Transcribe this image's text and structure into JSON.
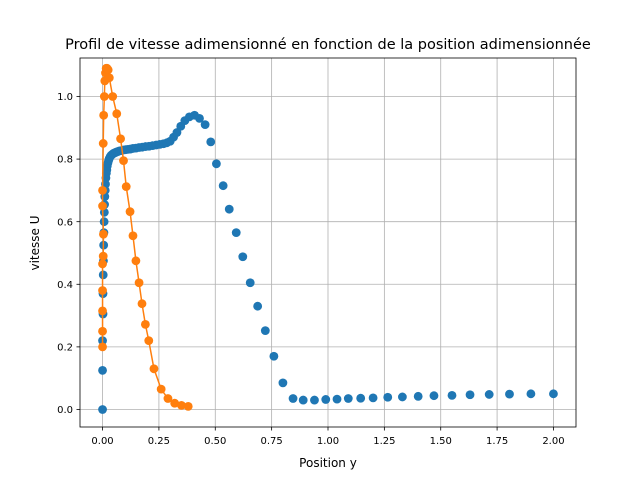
{
  "chart_data": {
    "type": "scatter",
    "title": "Profil de vitesse adimensionné en fonction de la position adimensionnée",
    "xlabel": "Position  y",
    "ylabel": "vitesse U",
    "xlim": [
      -0.1,
      2.1
    ],
    "ylim": [
      -0.056,
      1.123
    ],
    "x_ticks": [
      "0.00",
      "0.25",
      "0.50",
      "0.75",
      "1.00",
      "1.25",
      "1.50",
      "1.75",
      "2.00"
    ],
    "x_tick_values": [
      0,
      0.25,
      0.5,
      0.75,
      1.0,
      1.25,
      1.5,
      1.75,
      2.0
    ],
    "y_ticks": [
      "0.0",
      "0.2",
      "0.4",
      "0.6",
      "0.8",
      "1.0"
    ],
    "y_tick_values": [
      0,
      0.2,
      0.4,
      0.6,
      0.8,
      1.0
    ],
    "grid": true,
    "series": [
      {
        "color": "#1f77b4",
        "style": "markers",
        "points": [
          [
            0.0,
            0.0
          ],
          [
            0.0,
            0.125
          ],
          [
            0.0,
            0.22
          ],
          [
            0.002,
            0.305
          ],
          [
            0.002,
            0.37
          ],
          [
            0.003,
            0.43
          ],
          [
            0.004,
            0.475
          ],
          [
            0.005,
            0.525
          ],
          [
            0.006,
            0.565
          ],
          [
            0.007,
            0.6
          ],
          [
            0.008,
            0.63
          ],
          [
            0.009,
            0.655
          ],
          [
            0.01,
            0.68
          ],
          [
            0.012,
            0.7
          ],
          [
            0.013,
            0.72
          ],
          [
            0.015,
            0.74
          ],
          [
            0.017,
            0.755
          ],
          [
            0.019,
            0.765
          ],
          [
            0.021,
            0.778
          ],
          [
            0.024,
            0.788
          ],
          [
            0.027,
            0.796
          ],
          [
            0.03,
            0.802
          ],
          [
            0.034,
            0.808
          ],
          [
            0.038,
            0.812
          ],
          [
            0.043,
            0.815
          ],
          [
            0.048,
            0.818
          ],
          [
            0.054,
            0.82
          ],
          [
            0.06,
            0.822
          ],
          [
            0.067,
            0.824
          ],
          [
            0.075,
            0.826
          ],
          [
            0.083,
            0.827
          ],
          [
            0.092,
            0.829
          ],
          [
            0.102,
            0.83
          ],
          [
            0.112,
            0.831
          ],
          [
            0.123,
            0.832
          ],
          [
            0.135,
            0.834
          ],
          [
            0.148,
            0.835
          ],
          [
            0.162,
            0.837
          ],
          [
            0.176,
            0.838
          ],
          [
            0.191,
            0.84
          ],
          [
            0.206,
            0.841
          ],
          [
            0.222,
            0.843
          ],
          [
            0.238,
            0.845
          ],
          [
            0.254,
            0.847
          ],
          [
            0.27,
            0.849
          ],
          [
            0.285,
            0.852
          ],
          [
            0.3,
            0.857
          ],
          [
            0.315,
            0.87
          ],
          [
            0.33,
            0.885
          ],
          [
            0.347,
            0.905
          ],
          [
            0.365,
            0.923
          ],
          [
            0.385,
            0.935
          ],
          [
            0.408,
            0.94
          ],
          [
            0.43,
            0.93
          ],
          [
            0.455,
            0.91
          ],
          [
            0.48,
            0.855
          ],
          [
            0.505,
            0.785
          ],
          [
            0.535,
            0.715
          ],
          [
            0.562,
            0.64
          ],
          [
            0.593,
            0.565
          ],
          [
            0.622,
            0.488
          ],
          [
            0.655,
            0.405
          ],
          [
            0.688,
            0.33
          ],
          [
            0.722,
            0.252
          ],
          [
            0.76,
            0.17
          ],
          [
            0.8,
            0.085
          ],
          [
            0.845,
            0.035
          ],
          [
            0.89,
            0.03
          ],
          [
            0.94,
            0.03
          ],
          [
            0.99,
            0.032
          ],
          [
            1.04,
            0.033
          ],
          [
            1.09,
            0.035
          ],
          [
            1.145,
            0.036
          ],
          [
            1.2,
            0.037
          ],
          [
            1.265,
            0.039
          ],
          [
            1.33,
            0.04
          ],
          [
            1.4,
            0.042
          ],
          [
            1.47,
            0.044
          ],
          [
            1.55,
            0.045
          ],
          [
            1.63,
            0.047
          ],
          [
            1.715,
            0.048
          ],
          [
            1.805,
            0.049
          ],
          [
            1.9,
            0.05
          ],
          [
            2.0,
            0.05
          ]
        ]
      },
      {
        "color": "#ff7f0e",
        "style": "line-markers",
        "points": [
          [
            0.0,
            0.2
          ],
          [
            0.0,
            0.25
          ],
          [
            0.0,
            0.315
          ],
          [
            0.0,
            0.38
          ],
          [
            0.0,
            0.465
          ],
          [
            0.003,
            0.49
          ],
          [
            0.004,
            0.56
          ],
          [
            0.0,
            0.65
          ],
          [
            0.0,
            0.7
          ],
          [
            0.003,
            0.85
          ],
          [
            0.005,
            0.94
          ],
          [
            0.008,
            1.0
          ],
          [
            0.01,
            1.05
          ],
          [
            0.013,
            1.075
          ],
          [
            0.016,
            1.09
          ],
          [
            0.02,
            1.09
          ],
          [
            0.025,
            1.085
          ],
          [
            0.03,
            1.06
          ],
          [
            0.045,
            1.0
          ],
          [
            0.063,
            0.945
          ],
          [
            0.08,
            0.865
          ],
          [
            0.093,
            0.795
          ],
          [
            0.105,
            0.712
          ],
          [
            0.122,
            0.632
          ],
          [
            0.135,
            0.555
          ],
          [
            0.148,
            0.475
          ],
          [
            0.162,
            0.405
          ],
          [
            0.175,
            0.338
          ],
          [
            0.19,
            0.272
          ],
          [
            0.205,
            0.22
          ],
          [
            0.228,
            0.13
          ],
          [
            0.26,
            0.065
          ],
          [
            0.29,
            0.035
          ],
          [
            0.32,
            0.02
          ],
          [
            0.35,
            0.013
          ],
          [
            0.38,
            0.01
          ]
        ]
      }
    ]
  }
}
